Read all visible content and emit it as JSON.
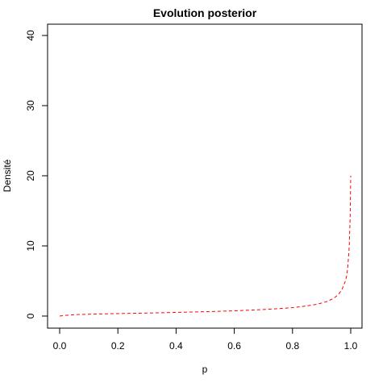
{
  "chart_data": {
    "type": "line",
    "title": "Evolution posterior",
    "xlabel": "p",
    "ylabel": "Densité",
    "xlim": [
      0,
      1
    ],
    "ylim": [
      0,
      40
    ],
    "x_ticks": [
      0.0,
      0.2,
      0.4,
      0.6,
      0.8,
      1.0
    ],
    "x_tick_labels": [
      "0.0",
      "0.2",
      "0.4",
      "0.6",
      "0.8",
      "1.0"
    ],
    "y_ticks": [
      0,
      10,
      20,
      30,
      40
    ],
    "y_tick_labels": [
      "0",
      "10",
      "20",
      "30",
      "40"
    ],
    "grid": false,
    "legend": "none",
    "series": [
      {
        "color": "#ff0000",
        "line_style": "dashed",
        "x": [
          0.0,
          0.02,
          0.05,
          0.1,
          0.15,
          0.2,
          0.25,
          0.3,
          0.35,
          0.4,
          0.45,
          0.5,
          0.55,
          0.6,
          0.65,
          0.7,
          0.75,
          0.8,
          0.85,
          0.88,
          0.9,
          0.92,
          0.94,
          0.95,
          0.96,
          0.97,
          0.98,
          0.985,
          0.99,
          0.995,
          0.998,
          1.0
        ],
        "y": [
          0.0,
          0.1,
          0.2,
          0.26,
          0.31,
          0.35,
          0.39,
          0.43,
          0.47,
          0.52,
          0.57,
          0.62,
          0.68,
          0.75,
          0.83,
          0.93,
          1.05,
          1.2,
          1.45,
          1.65,
          1.85,
          2.1,
          2.5,
          2.8,
          3.2,
          3.8,
          4.8,
          5.5,
          7.0,
          10.0,
          14.0,
          20.0
        ]
      }
    ]
  }
}
